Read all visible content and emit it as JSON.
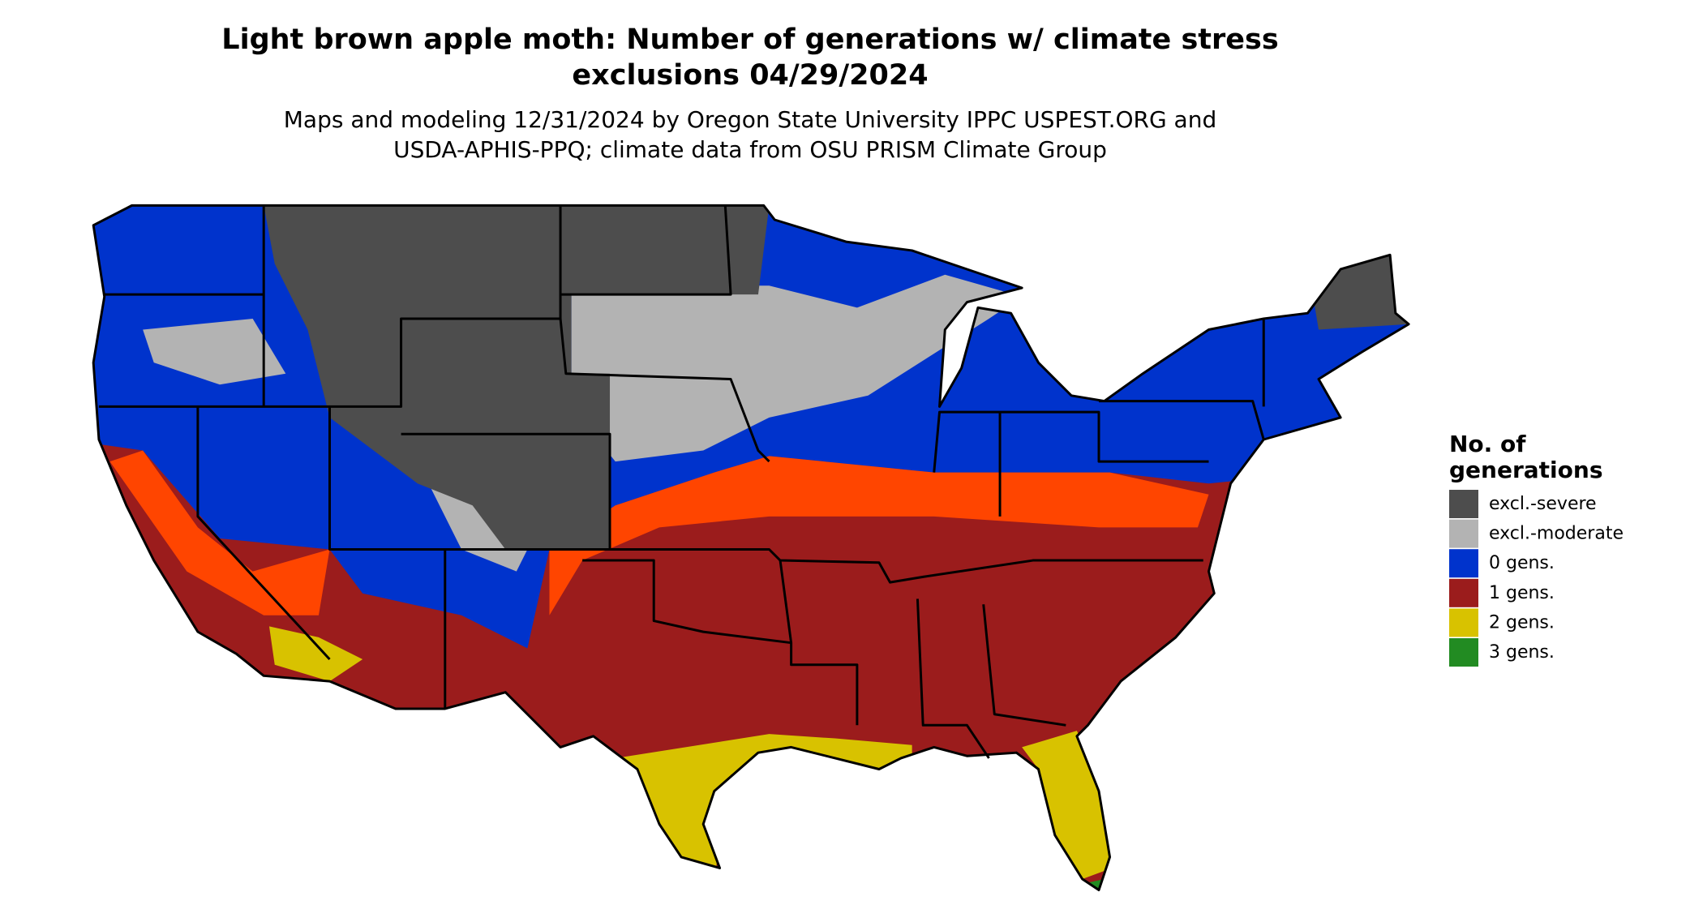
{
  "header": {
    "title": [
      "Light brown apple moth: Number of generations w/ climate stress",
      "exclusions 04/29/2024"
    ],
    "subtitle": [
      "Maps and modeling 12/31/2024 by Oregon State University IPPC USPEST.ORG and",
      "USDA-APHIS-PPQ; climate data from OSU PRISM Climate Group"
    ]
  },
  "legend": {
    "title": [
      "No. of",
      "generations"
    ],
    "items": [
      {
        "label": "excl.-severe",
        "color": "#4d4d4d"
      },
      {
        "label": "excl.-moderate",
        "color": "#b3b3b3"
      },
      {
        "label": "0 gens.",
        "color": "#0033cc"
      },
      {
        "label": "1 gens.",
        "color": "#9b1c1c"
      },
      {
        "label": "2 gens.",
        "color": "#d8c200"
      },
      {
        "label": "3 gens.",
        "color": "#228b22"
      }
    ]
  }
}
